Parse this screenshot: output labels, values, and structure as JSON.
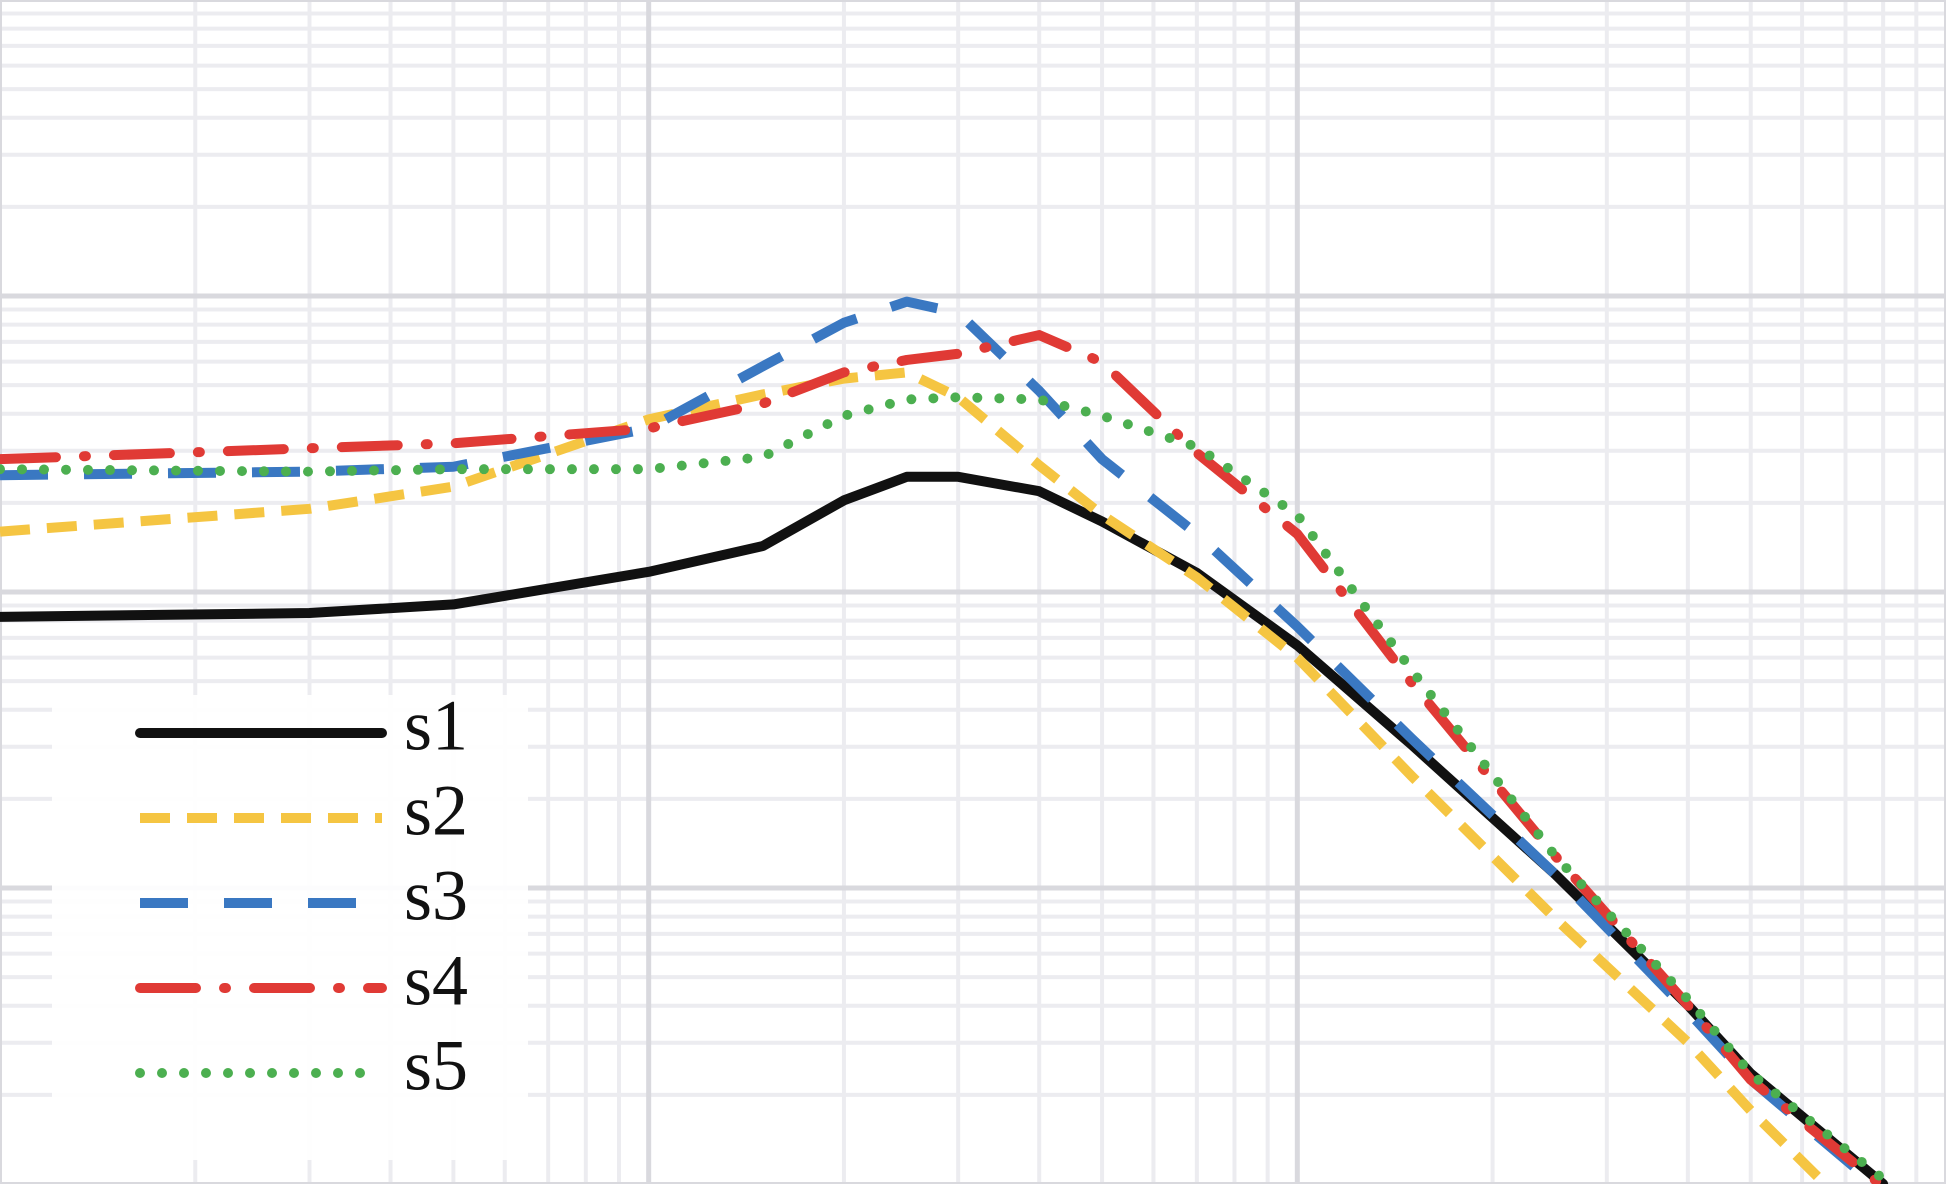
{
  "chart_data": {
    "type": "line",
    "xscale": "log",
    "yscale": "log",
    "grid": true,
    "legend": "lower left",
    "xlim": [
      0.1,
      100
    ],
    "ylim": [
      0.001,
      10
    ],
    "xticks": [
      1,
      10
    ],
    "yticks": [
      0.01,
      0.1,
      1
    ],
    "x": [
      0.1,
      0.3,
      0.5,
      1,
      1.5,
      2,
      2.5,
      3,
      4,
      5,
      7,
      10,
      15,
      25,
      40,
      50,
      80
    ],
    "series": [
      {
        "name": "s1",
        "color": "#111111",
        "linestyle": "solid",
        "values": [
          0.0824,
          0.0849,
          0.0908,
          0.117,
          0.143,
          0.204,
          0.245,
          0.245,
          0.219,
          0.173,
          0.116,
          0.066,
          0.0305,
          0.0111,
          0.00402,
          0.00236,
          0.001
        ]
      },
      {
        "name": "s2",
        "color": "#f5c542",
        "linestyle": "dashed",
        "values": [
          0.16,
          0.191,
          0.227,
          0.383,
          0.465,
          0.526,
          0.552,
          0.455,
          0.268,
          0.182,
          0.112,
          0.06,
          0.0239,
          0.00788,
          0.00301,
          0.00177,
          0.00064
        ]
      },
      {
        "name": "s3",
        "color": "#3a78c2",
        "linestyle": "long-dashed",
        "values": [
          0.248,
          0.255,
          0.265,
          0.357,
          0.579,
          0.812,
          0.957,
          0.877,
          0.478,
          0.281,
          0.157,
          0.0764,
          0.032,
          0.0111,
          0.00383,
          0.00225,
          0.000944
        ]
      },
      {
        "name": "s4",
        "color": "#e03a35",
        "linestyle": "dash-dot",
        "values": [
          0.281,
          0.306,
          0.318,
          0.357,
          0.433,
          0.552,
          0.608,
          0.638,
          0.738,
          0.597,
          0.295,
          0.157,
          0.0494,
          0.0128,
          0.00402,
          0.00225,
          0.00098
        ]
      },
      {
        "name": "s5",
        "color": "#4caf50",
        "linestyle": "dotted",
        "values": [
          0.26,
          0.255,
          0.26,
          0.26,
          0.286,
          0.394,
          0.447,
          0.455,
          0.447,
          0.394,
          0.309,
          0.182,
          0.0545,
          0.0128,
          0.00421,
          0.00236,
          0.00104
        ]
      }
    ]
  }
}
